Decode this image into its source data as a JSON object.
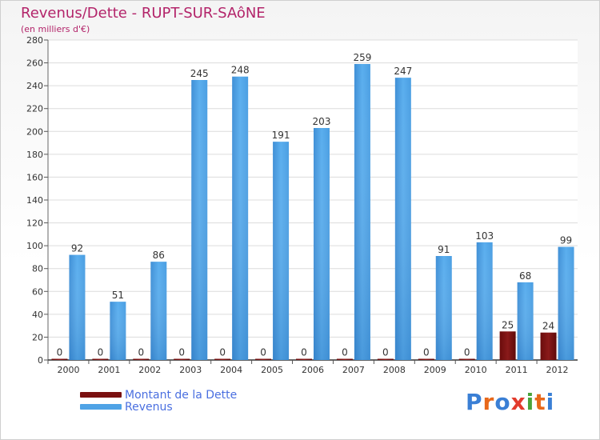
{
  "header": {
    "title": "Revenus/Dette - RUPT-SUR-SAôNE",
    "subtitle": "(en milliers d'€)"
  },
  "logo": {
    "text": "Proxiti",
    "letters": [
      "P",
      "r",
      "o",
      "x",
      "i",
      "t",
      "i"
    ],
    "colors": [
      "#3a7fd5",
      "#e8681a",
      "#3a7fd5",
      "#e23b2c",
      "#4aa33a",
      "#e8681a",
      "#3a7fd5"
    ]
  },
  "chart_data": {
    "type": "bar",
    "title": "Revenus/Dette - RUPT-SUR-SAôNE",
    "ylabel": "(en milliers d'€)",
    "xlabel": "",
    "categories": [
      "2000",
      "2001",
      "2002",
      "2003",
      "2004",
      "2005",
      "2006",
      "2007",
      "2008",
      "2009",
      "2010",
      "2011",
      "2012"
    ],
    "ylim": [
      0,
      280
    ],
    "yticks": [
      0,
      20,
      40,
      60,
      80,
      100,
      120,
      140,
      160,
      180,
      200,
      220,
      240,
      260,
      280
    ],
    "grid": true,
    "legend_position": "bottom-left",
    "series": [
      {
        "name": "Montant de la Dette",
        "color": "#7a1010",
        "values": [
          0,
          0,
          0,
          0,
          0,
          0,
          0,
          0,
          0,
          0,
          0,
          25,
          24
        ]
      },
      {
        "name": "Revenus",
        "color": "#4fa3e6",
        "values": [
          92,
          51,
          86,
          245,
          248,
          191,
          203,
          259,
          247,
          91,
          103,
          68,
          99
        ]
      }
    ]
  }
}
